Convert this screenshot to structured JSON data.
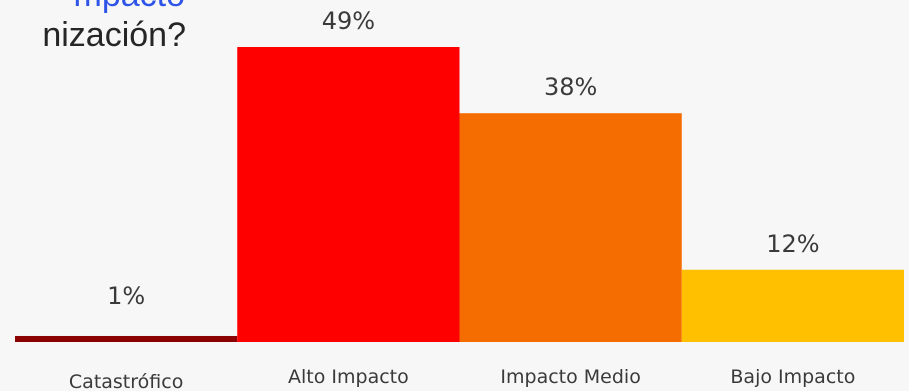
{
  "header": {
    "title_line1": "mpacto",
    "title_line2": "nización?"
  },
  "chart_data": {
    "type": "bar",
    "title": "",
    "xlabel": "",
    "ylabel": "",
    "categories": [
      "Catastrófico",
      "Alto Impacto",
      "Impacto Medio",
      "Bajo Impacto"
    ],
    "values": [
      1,
      49,
      38,
      12
    ],
    "value_labels": [
      "1%",
      "49%",
      "38%",
      "12%"
    ],
    "ylim": [
      0,
      49
    ],
    "grid": false,
    "legend": "none",
    "colors": [
      "#8b0000",
      "#ff0000",
      "#f56c00",
      "#ffc000"
    ]
  }
}
